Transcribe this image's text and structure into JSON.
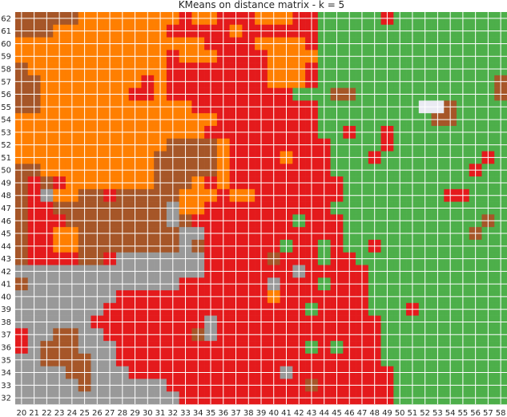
{
  "chart_data": {
    "type": "heatmap",
    "title": "KMeans on distance matrix - k = 5",
    "xlabel": "",
    "ylabel": "",
    "x": [
      20,
      21,
      22,
      23,
      24,
      25,
      26,
      27,
      28,
      29,
      30,
      31,
      32,
      33,
      34,
      35,
      36,
      37,
      38,
      39,
      40,
      41,
      42,
      43,
      44,
      45,
      46,
      47,
      48,
      49,
      50,
      51,
      52,
      53,
      54,
      55,
      56,
      57,
      58
    ],
    "y": [
      62,
      61,
      60,
      59,
      58,
      57,
      56,
      55,
      54,
      53,
      52,
      51,
      50,
      49,
      48,
      47,
      46,
      45,
      44,
      43,
      42,
      41,
      40,
      39,
      38,
      37,
      36,
      35,
      34,
      33,
      32
    ],
    "x_tick_labels": [
      "20",
      "21",
      "22",
      "23",
      "24",
      "25",
      "26",
      "27",
      "28",
      "29",
      "30",
      "31",
      "32",
      "33",
      "34",
      "35",
      "36",
      "37",
      "38",
      "39",
      "40",
      "41",
      "42",
      "43",
      "44",
      "45",
      "46",
      "47",
      "48",
      "49",
      "50",
      "51",
      "52",
      "53",
      "54",
      "55",
      "56",
      "57",
      "58"
    ],
    "y_tick_labels": [
      "62",
      "61",
      "60",
      "59",
      "58",
      "57",
      "56",
      "55",
      "54",
      "53",
      "52",
      "51",
      "50",
      "49",
      "48",
      "47",
      "46",
      "45",
      "44",
      "43",
      "42",
      "41",
      "40",
      "39",
      "38",
      "37",
      "36",
      "35",
      "34",
      "33",
      "32"
    ],
    "grid": true,
    "cluster_colors": {
      "O": "#ff7f00",
      "B": "#a65628",
      "R": "#e41a1c",
      "G": "#4daf4a",
      "Y": "#999999",
      "W": "#eaeaf2"
    },
    "rows": [
      "BBBBBOOOOOOOOROORRROOORRGGGGGRGGGGGGGGG",
      "BBBOOOOOOOOORRRRRORRRRRRGGGGGGGGGGGGGGG",
      "OOOOOOOOOOOOOOORRRROOOORGGGGGGGGGGGGGGG",
      "OOOOOOOOOOOOROOORRRROOOOGGGGGGGGGGGGGGG",
      "BOOOOOOOOOOORRRRRRRROOORGGGGGGGGGGGGGGG",
      "BBOOOOOOOORORRRRRRRROOORGGGGGGGGGGGGGGB",
      "BBOOOOOOORRORRRRRRRRRRGGGBBGGGGGGGGGGGB",
      "BBOOOOOOOOOOOORRRRRRRRRRGGGGGGGGGGGGGGG",
      "OOOOOOOOOOOOOOOORRRRRRRRGGGGGGGGGGGGGGG",
      "OOOOOOOOOOOOOOORRRRRRRRRGGGGGGGGGGGGGGG",
      "OOOOOOOOOOOOBBBBORRRRRRRRGGGGGGGGGGGGGG",
      "OOOOOOOOOOOBBBBBORRRRRRRRGGGGGGGGGGGGGG",
      "BBOOOOOOOOOBBBBBORRRRRRRRGGGGGGGGGGGGGG",
      "BRBROOOOOOOBBBOOORRRRRRRRRGGGGGGGGGGGGG",
      "BRYOOBBBBBBBBOOOROORRRRRRRGGGGGGGGGGGGG",
      "BRRBBBBBBBBBBOORRRRRRRRRRGGGGGGGGGGGGGG",
      "BRRRBBBBBBBBBBRRRRRRRRRRRRGGGGGGGGGGGGG",
      "BRROOBBBBBBBBBBRRRRRRRRRRRGGGGGGGGGGGGG",
      "BRROOBBBBBBBBYBRRRRRRRRRRRGGGGGGGGGGGGG",
      "BRRRRBBRYYYYYYYRRRRRRRRRRRRGGGGGGGGGGGG",
      "YYYYYYYYYYYYYYYRRRRRRRRRRRRRGGGGGGGGGGG",
      "BYYYYYYYYYYYYRRRRRRRRRRRRRRRGGGGGGGGGGG",
      "YYYYYYYYRRRRRRRRRRRRRRRRRRRRGGGGGGGGGGG",
      "YYYYYYYRRRRRRRRRRRRRRRRRRRRRGGGGGGGGGGG",
      "YYYYYYRRRRRRRRRRRRRRRRRRRRRRRGGGGGGGGGG",
      "YYYYYYYRRRRRRRRRRRRRRRRRRRRRRGGGGGGGGGG",
      "YYYYYYYYRRRRRRRRRRRRRRRRRRRRRGGGGGGGGGG",
      "YYYYYYYYRRRRRRRRRRRRRRRRRRRRRGGGGGGGGGG",
      "YYYYYYYYYRRRRRRRRRRRRRRRRRRRRRGGGGGGGGG",
      "YYYYYYYYYYYYRRRRRRRRRRRRRRRRRRGGGGGGGGG",
      "YYYYYYYYYYYYYRRRRRRRRRRRRRRRRRGGGGGGGGG"
    ],
    "overrides": [
      {
        "x": 52,
        "y": 55,
        "c": "W"
      },
      {
        "x": 53,
        "y": 55,
        "c": "W"
      },
      {
        "x": 54,
        "y": 55,
        "c": "B"
      },
      {
        "x": 53,
        "y": 54,
        "c": "B"
      },
      {
        "x": 54,
        "y": 54,
        "c": "B"
      },
      {
        "x": 49,
        "y": 62,
        "c": "R"
      },
      {
        "x": 46,
        "y": 53,
        "c": "R"
      },
      {
        "x": 49,
        "y": 53,
        "c": "R"
      },
      {
        "x": 49,
        "y": 52,
        "c": "R"
      },
      {
        "x": 48,
        "y": 51,
        "c": "R"
      },
      {
        "x": 57,
        "y": 51,
        "c": "R"
      },
      {
        "x": 56,
        "y": 50,
        "c": "R"
      },
      {
        "x": 41,
        "y": 51,
        "c": "O"
      },
      {
        "x": 54,
        "y": 48,
        "c": "R"
      },
      {
        "x": 55,
        "y": 48,
        "c": "R"
      },
      {
        "x": 57,
        "y": 46,
        "c": "B"
      },
      {
        "x": 56,
        "y": 45,
        "c": "B"
      },
      {
        "x": 42,
        "y": 46,
        "c": "G"
      },
      {
        "x": 41,
        "y": 44,
        "c": "G"
      },
      {
        "x": 44,
        "y": 44,
        "c": "G"
      },
      {
        "x": 44,
        "y": 43,
        "c": "G"
      },
      {
        "x": 48,
        "y": 44,
        "c": "R"
      },
      {
        "x": 40,
        "y": 43,
        "c": "B"
      },
      {
        "x": 42,
        "y": 42,
        "c": "Y"
      },
      {
        "x": 40,
        "y": 41,
        "c": "Y"
      },
      {
        "x": 44,
        "y": 41,
        "c": "G"
      },
      {
        "x": 40,
        "y": 40,
        "c": "O"
      },
      {
        "x": 43,
        "y": 39,
        "c": "G"
      },
      {
        "x": 51,
        "y": 39,
        "c": "R"
      },
      {
        "x": 43,
        "y": 36,
        "c": "G"
      },
      {
        "x": 45,
        "y": 36,
        "c": "G"
      },
      {
        "x": 41,
        "y": 34,
        "c": "Y"
      },
      {
        "x": 43,
        "y": 33,
        "c": "B"
      },
      {
        "x": 47,
        "y": 32,
        "c": "R"
      },
      {
        "x": 27,
        "y": 48,
        "c": "R"
      },
      {
        "x": 35,
        "y": 49,
        "c": "R"
      },
      {
        "x": 33,
        "y": 37,
        "c": "R"
      },
      {
        "x": 34,
        "y": 37,
        "c": "B"
      },
      {
        "x": 20,
        "y": 37,
        "c": "R"
      },
      {
        "x": 20,
        "y": 36,
        "c": "R"
      },
      {
        "x": 22,
        "y": 36,
        "c": "B"
      },
      {
        "x": 23,
        "y": 36,
        "c": "B"
      },
      {
        "x": 24,
        "y": 36,
        "c": "B"
      },
      {
        "x": 23,
        "y": 37,
        "c": "B"
      },
      {
        "x": 24,
        "y": 37,
        "c": "B"
      },
      {
        "x": 22,
        "y": 35,
        "c": "B"
      },
      {
        "x": 23,
        "y": 35,
        "c": "B"
      },
      {
        "x": 24,
        "y": 35,
        "c": "B"
      },
      {
        "x": 25,
        "y": 35,
        "c": "B"
      },
      {
        "x": 24,
        "y": 34,
        "c": "B"
      },
      {
        "x": 25,
        "y": 34,
        "c": "B"
      },
      {
        "x": 25,
        "y": 33,
        "c": "B"
      },
      {
        "x": 20,
        "y": 43,
        "c": "B"
      },
      {
        "x": 32,
        "y": 46,
        "c": "Y"
      },
      {
        "x": 32,
        "y": 47,
        "c": "Y"
      },
      {
        "x": 33,
        "y": 45,
        "c": "Y"
      },
      {
        "x": 34,
        "y": 45,
        "c": "Y"
      },
      {
        "x": 35,
        "y": 38,
        "c": "Y"
      },
      {
        "x": 35,
        "y": 37,
        "c": "Y"
      },
      {
        "x": 24,
        "y": 37,
        "c": "B"
      }
    ]
  }
}
